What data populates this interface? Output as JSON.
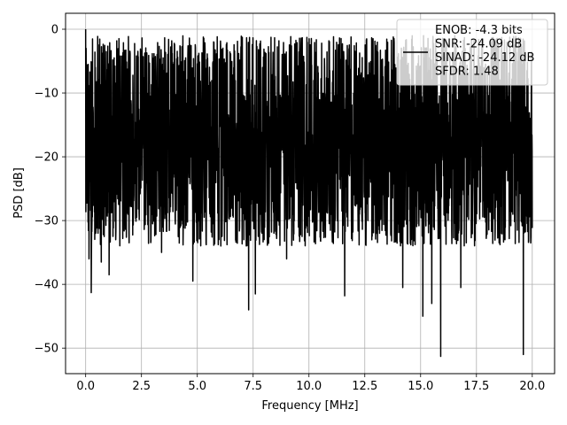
{
  "chart_data": {
    "type": "line",
    "title": "",
    "xlabel": "Frequency [MHz]",
    "ylabel": "PSD [dB]",
    "xlim": [
      -0.9,
      21.0
    ],
    "ylim": [
      -54,
      2.5
    ],
    "xticks": [
      0.0,
      2.5,
      5.0,
      7.5,
      10.0,
      12.5,
      15.0,
      17.5,
      20.0
    ],
    "xtick_labels": [
      "0.0",
      "2.5",
      "5.0",
      "7.5",
      "10.0",
      "12.5",
      "15.0",
      "17.5",
      "20.0"
    ],
    "yticks": [
      0,
      -10,
      -20,
      -30,
      -40,
      -50
    ],
    "ytick_labels": [
      "0",
      "−10",
      "−20",
      "−30",
      "−40",
      "−50"
    ],
    "grid": true,
    "legend_position": "top-right",
    "series": [
      {
        "name": "ENOB: -4.3 bits\nSNR: -24.09 dB\nSINAD: -24.12 dB\nSFDR: 1.48",
        "color": "#000000",
        "x_range": [
          0.0,
          20.0
        ],
        "baseline_db": -18,
        "upper_envelope_db": -5,
        "lower_envelope_db": -30,
        "peaks": [
          {
            "x": 0.0,
            "y": 0.0
          },
          {
            "x": 0.02,
            "y": -3.0
          },
          {
            "x": 0.15,
            "y": -36.0
          },
          {
            "x": 0.25,
            "y": -41.3
          },
          {
            "x": 0.45,
            "y": -32.0
          },
          {
            "x": 0.7,
            "y": -36.5
          },
          {
            "x": 1.05,
            "y": -38.5
          },
          {
            "x": 3.4,
            "y": -35.0
          },
          {
            "x": 4.8,
            "y": -39.5
          },
          {
            "x": 7.3,
            "y": -44.0
          },
          {
            "x": 7.6,
            "y": -41.5
          },
          {
            "x": 9.0,
            "y": -36.0
          },
          {
            "x": 11.6,
            "y": -41.8
          },
          {
            "x": 14.2,
            "y": -40.5
          },
          {
            "x": 15.1,
            "y": -45.0
          },
          {
            "x": 15.5,
            "y": -43.0
          },
          {
            "x": 15.9,
            "y": -51.3
          },
          {
            "x": 16.8,
            "y": -40.5
          },
          {
            "x": 19.6,
            "y": -51.0
          }
        ]
      }
    ]
  }
}
